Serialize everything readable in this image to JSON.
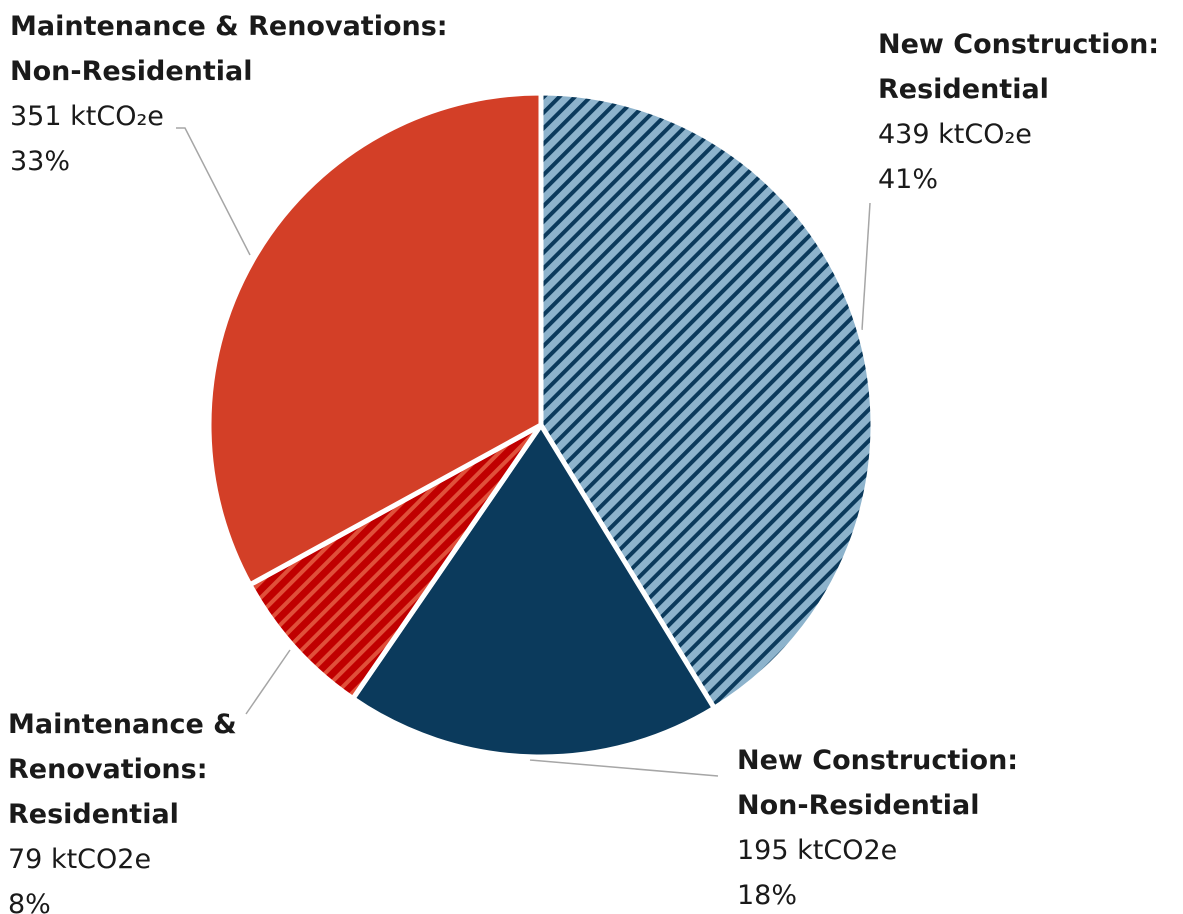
{
  "chart_data": {
    "type": "pie",
    "categories": [
      "New Construction: Residential",
      "New Construction: Non-Residential",
      "Maintenance & Renovations: Residential",
      "Maintenance & Renovations: Non-Residential"
    ],
    "values": [
      439,
      195,
      79,
      351
    ],
    "value_labels": [
      "439 ktCO₂e",
      "195 ktCO2e",
      "79 ktCO2e",
      "351 ktCO₂e"
    ],
    "percentages": [
      41,
      18,
      8,
      33
    ],
    "percentage_labels": [
      "41%",
      "18%",
      "8%",
      "33%"
    ],
    "colors": [
      "#8db3cc",
      "#0b3a5c",
      "#c00000",
      "#d33f27"
    ],
    "hatched": [
      true,
      false,
      true,
      false
    ]
  }
}
